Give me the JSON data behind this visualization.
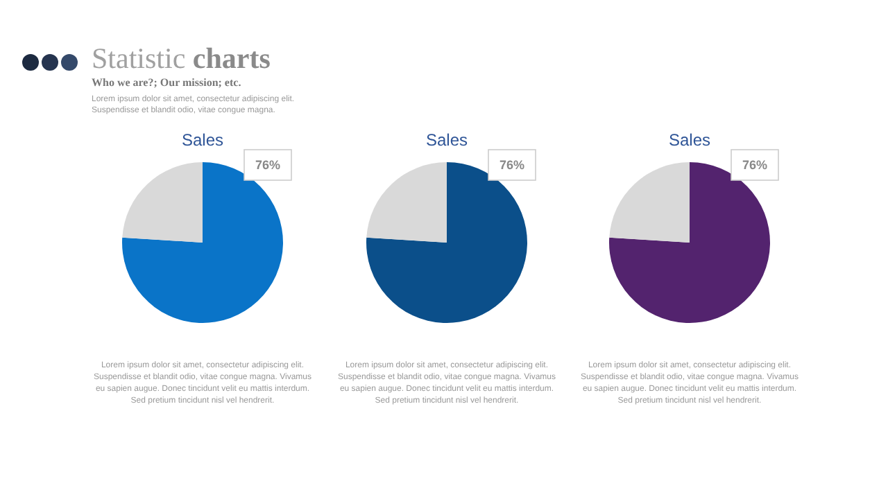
{
  "chart_data": [
    {
      "type": "other",
      "title": "Statistic charts",
      "subtitle": "Who we are?; Our mission; etc.",
      "annotations": [
        "Lorem ipsum dolor sit amet, consectetur adipiscing elit. Suspendisse et blandit odio, vitae congue magna."
      ]
    },
    {
      "type": "pie",
      "title": "Sales",
      "categories": [
        null,
        null
      ],
      "values": [
        76,
        24
      ],
      "colors": [
        "#0a74c8",
        "#d9d9d9"
      ],
      "value_labels": [
        "76%",
        null
      ],
      "annotations": [
        "Lorem ipsum dolor sit amet, consectetur adipiscing elit. Suspendisse et blandit odio, vitae congue magna. Vivamus eu sapien augue. Donec tincidunt velit eu mattis interdum. Sed pretium tincidunt nisl vel hendrerit."
      ]
    },
    {
      "type": "pie",
      "title": "Sales",
      "categories": [
        null,
        null
      ],
      "values": [
        76,
        24
      ],
      "colors": [
        "#0b4f8a",
        "#d9d9d9"
      ],
      "value_labels": [
        "76%",
        null
      ],
      "annotations": [
        "Lorem ipsum dolor sit amet, consectetur adipiscing elit. Suspendisse et blandit odio, vitae congue magna. Vivamus eu sapien augue. Donec tincidunt velit eu mattis interdum. Sed pretium tincidunt nisl vel hendrerit."
      ]
    },
    {
      "type": "pie",
      "title": "Sales",
      "categories": [
        null,
        null
      ],
      "values": [
        76,
        24
      ],
      "colors": [
        "#53236e",
        "#d9d9d9"
      ],
      "value_labels": [
        "76%",
        null
      ],
      "annotations": [
        "Lorem ipsum dolor sit amet, consectetur adipiscing elit. Suspendisse et blandit odio, vitae congue magna. Vivamus eu sapien augue. Donec tincidunt velit eu mattis interdum. Sed pretium tincidunt nisl vel hendrerit."
      ]
    }
  ]
}
